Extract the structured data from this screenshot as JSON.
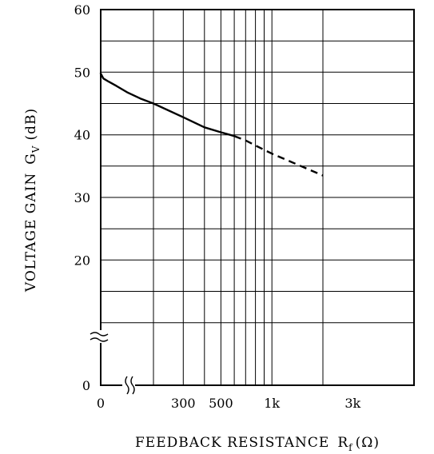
{
  "chart_data": {
    "type": "line",
    "xlabel": "FEEDBACK RESISTANCE",
    "xlabel_symbol": "R",
    "xlabel_sub": "f",
    "xlabel_unit": "(Ω)",
    "ylabel": "VOLTAGE GAIN",
    "ylabel_symbol": "G",
    "ylabel_sub": "V",
    "ylabel_unit": "(dB)",
    "x_scale": "broken-log",
    "x_ticks": [
      {
        "value": 0,
        "label": "0"
      },
      {
        "value": 300,
        "label": "300"
      },
      {
        "value": 500,
        "label": "500"
      },
      {
        "value": 1000,
        "label": "1k"
      },
      {
        "value": 3000,
        "label": "3k"
      }
    ],
    "x_grid": [
      200,
      300,
      400,
      500,
      600,
      700,
      800,
      900,
      1000,
      2000
    ],
    "y_ticks": [
      {
        "value": 0,
        "label": "0"
      },
      {
        "value": 20,
        "label": "20"
      },
      {
        "value": 30,
        "label": "30"
      },
      {
        "value": 40,
        "label": "40"
      },
      {
        "value": 50,
        "label": "50"
      },
      {
        "value": 60,
        "label": "60"
      }
    ],
    "y_grid": [
      10,
      15,
      20,
      25,
      30,
      35,
      40,
      45,
      50,
      55
    ],
    "xlim": [
      0,
      3000
    ],
    "ylim": [
      0,
      60
    ],
    "grid": true,
    "series": [
      {
        "style": "solid",
        "x": [
          0,
          10,
          30,
          60,
          100,
          150,
          200,
          300,
          400,
          500,
          600
        ],
        "y": [
          49.8,
          49.0,
          48.5,
          47.8,
          46.8,
          45.8,
          45.0,
          42.8,
          41.2,
          40.4,
          39.8
        ]
      },
      {
        "style": "dashed",
        "x": [
          600,
          700,
          800,
          900,
          1000,
          2000
        ],
        "y": [
          39.8,
          39.1,
          38.3,
          37.6,
          37.0,
          33.5
        ]
      }
    ]
  }
}
